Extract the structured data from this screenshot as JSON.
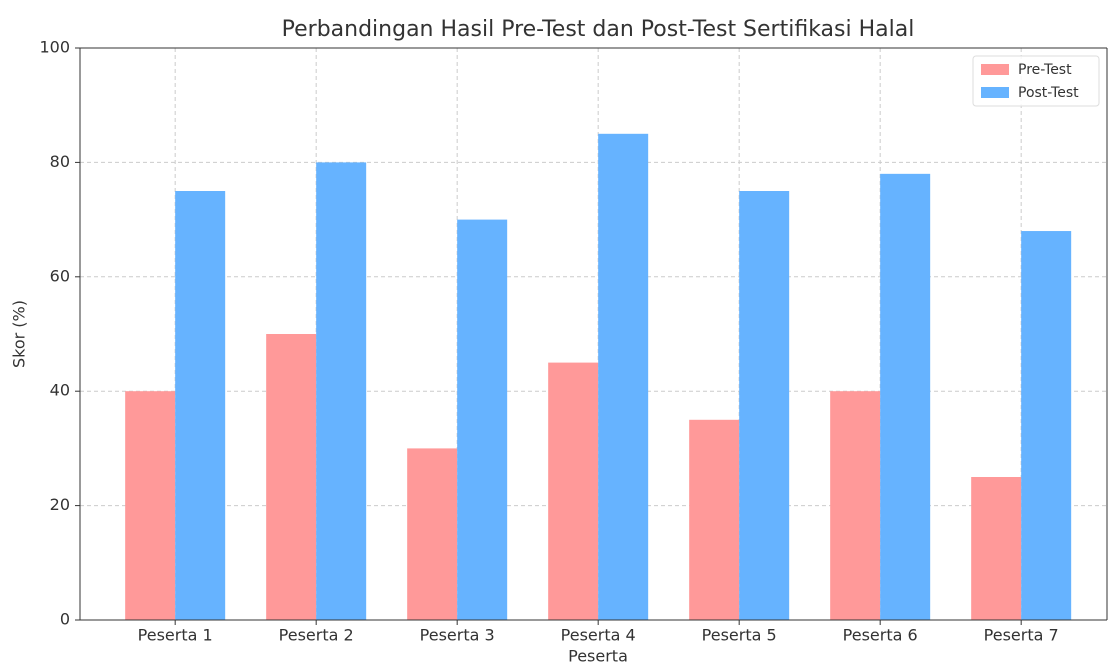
{
  "chart_data": {
    "type": "bar",
    "title": "Perbandingan Hasil Pre-Test dan Post-Test Sertifikasi Halal",
    "xlabel": "Peserta",
    "ylabel": "Skor (%)",
    "categories": [
      "Peserta 1",
      "Peserta 2",
      "Peserta 3",
      "Peserta 4",
      "Peserta 5",
      "Peserta 6",
      "Peserta 7"
    ],
    "series": [
      {
        "name": "Pre-Test",
        "color": "#ff9999",
        "values": [
          40,
          50,
          30,
          45,
          35,
          40,
          25
        ]
      },
      {
        "name": "Post-Test",
        "color": "#66b3ff",
        "values": [
          75,
          80,
          70,
          85,
          75,
          78,
          68
        ]
      }
    ],
    "ylim": [
      0,
      100
    ],
    "yticks": [
      0,
      20,
      40,
      60,
      80,
      100
    ],
    "grid": true,
    "legend": "upper right"
  }
}
